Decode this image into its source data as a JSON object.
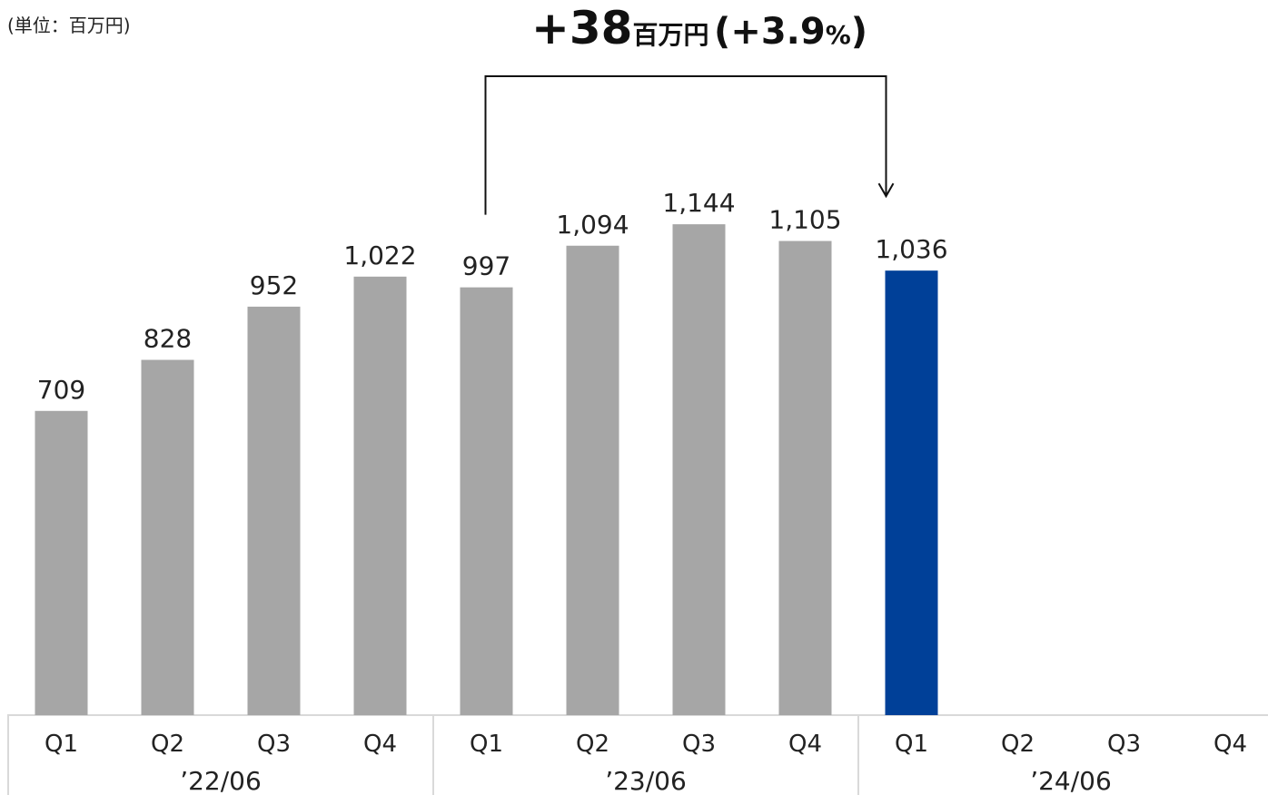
{
  "unit_label": "(単位：百万円)",
  "headline": {
    "change_value": "+38",
    "change_unit": "百万円",
    "open_paren": "(",
    "change_pct": "+3.9",
    "pct_sign": "%",
    "close_paren": ")"
  },
  "chart_data": {
    "type": "bar",
    "categories": [
      "Q1",
      "Q2",
      "Q3",
      "Q4",
      "Q1",
      "Q2",
      "Q3",
      "Q4",
      "Q1",
      "Q2",
      "Q3",
      "Q4"
    ],
    "groups": [
      {
        "label": "’22/06",
        "span": [
          0,
          3
        ]
      },
      {
        "label": "’23/06",
        "span": [
          4,
          7
        ]
      },
      {
        "label": "’24/06",
        "span": [
          8,
          11
        ]
      }
    ],
    "values": [
      709,
      828,
      952,
      1022,
      997,
      1094,
      1144,
      1105,
      1036,
      null,
      null,
      null
    ],
    "value_labels": [
      "709",
      "828",
      "952",
      "1,022",
      "997",
      "1,094",
      "1,144",
      "1,105",
      "1,036",
      "",
      "",
      ""
    ],
    "highlight_index": 8,
    "colors": {
      "default": "#a6a6a6",
      "highlight": "#004098",
      "axis": "#d9d9d9",
      "arrow": "#111111"
    },
    "comparison_arrow": {
      "from_index": 4,
      "to_index": 8
    },
    "ylim": [
      0,
      1200
    ]
  }
}
